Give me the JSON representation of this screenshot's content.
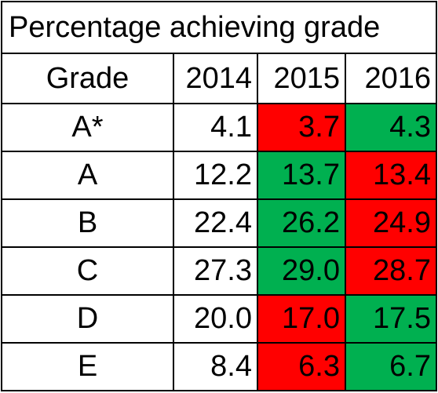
{
  "chart_data": {
    "type": "table",
    "title": "Percentage achieving grade",
    "columns": [
      "Grade",
      "2014",
      "2015",
      "2016"
    ],
    "rows": [
      {
        "grade": "A*",
        "v2014": "4.1",
        "v2015": "3.7",
        "v2016": "4.3",
        "c2015": "red",
        "c2016": "green"
      },
      {
        "grade": "A",
        "v2014": "12.2",
        "v2015": "13.7",
        "v2016": "13.4",
        "c2015": "green",
        "c2016": "red"
      },
      {
        "grade": "B",
        "v2014": "22.4",
        "v2015": "26.2",
        "v2016": "24.9",
        "c2015": "green",
        "c2016": "red"
      },
      {
        "grade": "C",
        "v2014": "27.3",
        "v2015": "29.0",
        "v2016": "28.7",
        "c2015": "green",
        "c2016": "red"
      },
      {
        "grade": "D",
        "v2014": "20.0",
        "v2015": "17.0",
        "v2016": "17.5",
        "c2015": "red",
        "c2016": "green"
      },
      {
        "grade": "E",
        "v2014": "8.4",
        "v2015": "6.3",
        "v2016": "6.7",
        "c2015": "red",
        "c2016": "green"
      }
    ],
    "colors": {
      "red": "#ff0000",
      "green": "#00b050"
    }
  }
}
